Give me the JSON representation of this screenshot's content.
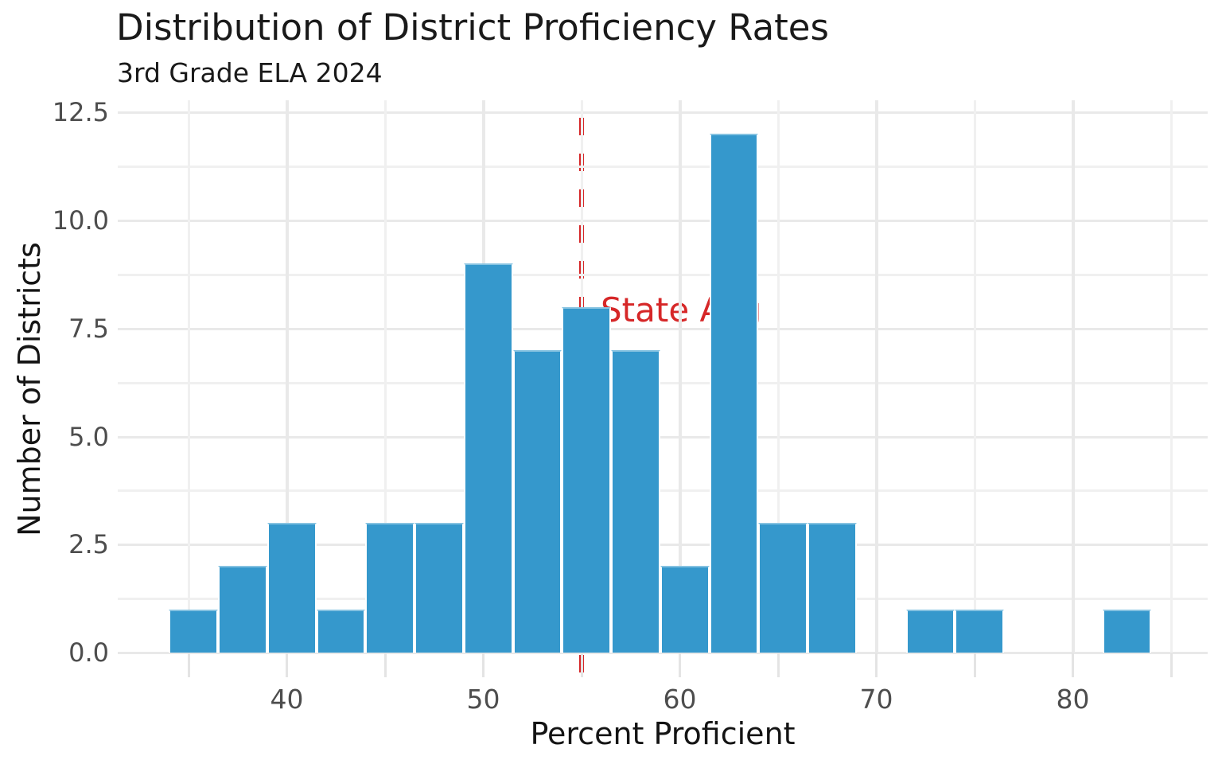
{
  "header": {
    "title": "Distribution of District Proficiency Rates",
    "subtitle": "3rd Grade ELA 2024"
  },
  "chart_data": {
    "type": "bar",
    "subtype": "histogram",
    "title": "Distribution of District Proficiency Rates",
    "subtitle": "3rd Grade ELA 2024",
    "xlabel": "Percent Proficient",
    "ylabel": "Number of Districts",
    "bins": {
      "start": 34,
      "width": 2.5,
      "counts": [
        1,
        2,
        3,
        1,
        3,
        3,
        9,
        7,
        8,
        7,
        2,
        12,
        3,
        3,
        0,
        1,
        1,
        0,
        0,
        1
      ]
    },
    "x_ticks": {
      "values": [
        40,
        50,
        60,
        70,
        80
      ],
      "labels": [
        "40",
        "50",
        "60",
        "70",
        "80"
      ]
    },
    "x_minor_ticks": [
      35,
      45,
      55,
      65,
      75,
      85
    ],
    "y_ticks": {
      "values": [
        0,
        2.5,
        5,
        7.5,
        10,
        12.5
      ],
      "labels": [
        "0.0",
        "2.5",
        "5.0",
        "7.5",
        "10.0",
        "12.5"
      ]
    },
    "y_minor_ticks": [
      1.25,
      3.75,
      6.25,
      8.75,
      11.25
    ],
    "xlim": [
      31.4,
      86.9
    ],
    "ylim": [
      0,
      12.8
    ],
    "grid": true,
    "legend": false,
    "reference_line": {
      "x": 55,
      "label": "State Avg",
      "style": "dashed"
    }
  },
  "colors": {
    "bar_fill": "#3598cc",
    "bar_edge": "#ffffff",
    "reference_red": "#d62728",
    "grid_major": "#e9e9e9",
    "grid_minor": "#f0f0f0",
    "tick_label": "#4d4d4d",
    "text": "#1a1a1a",
    "background": "#ffffff"
  }
}
